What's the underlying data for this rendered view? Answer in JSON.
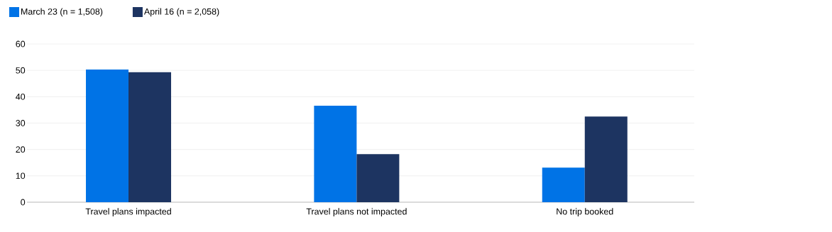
{
  "chart_data": {
    "type": "bar",
    "categories": [
      "Travel plans impacted",
      "Travel plans not impacted",
      "No trip booked"
    ],
    "series": [
      {
        "name": "March 23 (n = 1,508)",
        "color": "#0073e6",
        "values": [
          50.3,
          36.6,
          13.1
        ]
      },
      {
        "name": "April 16 (n = 2,058)",
        "color": "#1d3461",
        "values": [
          49.3,
          18.2,
          32.5
        ]
      }
    ],
    "ylim": [
      0,
      60
    ],
    "yticks": [
      0,
      10,
      20,
      30,
      40,
      50,
      60
    ],
    "grid": "y",
    "legend": "top left"
  }
}
